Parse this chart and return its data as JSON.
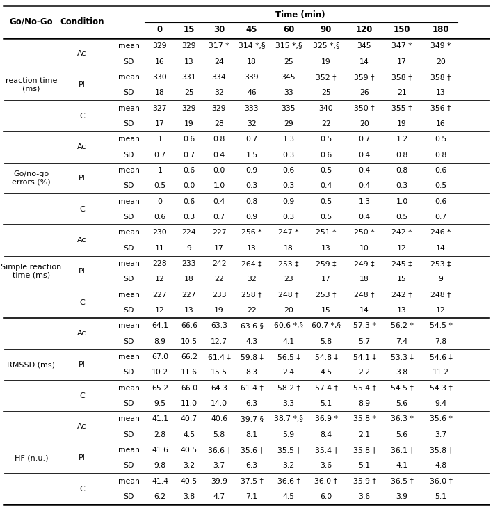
{
  "sections": [
    {
      "label": "reaction time\n(ms)",
      "conditions": [
        {
          "name": "Ac",
          "rows": [
            {
              "type": "mean",
              "values": [
                "329",
                "329",
                "317 *",
                "314 *,§",
                "315 *,§",
                "325 *,§",
                "345",
                "347 *",
                "349 *"
              ]
            },
            {
              "type": "SD",
              "values": [
                "16",
                "13",
                "24",
                "18",
                "25",
                "19",
                "14",
                "17",
                "20"
              ]
            }
          ]
        },
        {
          "name": "Pl",
          "rows": [
            {
              "type": "mean",
              "values": [
                "330",
                "331",
                "334",
                "339",
                "345",
                "352 ‡",
                "359 ‡",
                "358 ‡",
                "358 ‡"
              ]
            },
            {
              "type": "SD",
              "values": [
                "18",
                "25",
                "32",
                "46",
                "33",
                "25",
                "26",
                "21",
                "13"
              ]
            }
          ]
        },
        {
          "name": "C",
          "rows": [
            {
              "type": "mean",
              "values": [
                "327",
                "329",
                "329",
                "333",
                "335",
                "340",
                "350 †",
                "355 †",
                "356 †"
              ]
            },
            {
              "type": "SD",
              "values": [
                "17",
                "19",
                "28",
                "32",
                "29",
                "22",
                "20",
                "19",
                "16"
              ]
            }
          ]
        }
      ]
    },
    {
      "label": "Go/no-go\nerrors (%)",
      "conditions": [
        {
          "name": "Ac",
          "rows": [
            {
              "type": "mean",
              "values": [
                "1",
                "0.6",
                "0.8",
                "0.7",
                "1.3",
                "0.5",
                "0.7",
                "1.2",
                "0.5"
              ]
            },
            {
              "type": "SD",
              "values": [
                "0.7",
                "0.7",
                "0.4",
                "1.5",
                "0.3",
                "0.6",
                "0.4",
                "0.8",
                "0.8"
              ]
            }
          ]
        },
        {
          "name": "Pl",
          "rows": [
            {
              "type": "mean",
              "values": [
                "1",
                "0.6",
                "0.0",
                "0.9",
                "0.6",
                "0.5",
                "0.4",
                "0.8",
                "0.6"
              ]
            },
            {
              "type": "SD",
              "values": [
                "0.5",
                "0.0",
                "1.0",
                "0.3",
                "0.3",
                "0.4",
                "0.4",
                "0.3",
                "0.5"
              ]
            }
          ]
        },
        {
          "name": "C",
          "rows": [
            {
              "type": "mean",
              "values": [
                "0",
                "0.6",
                "0.4",
                "0.8",
                "0.9",
                "0.5",
                "1.3",
                "1.0",
                "0.6"
              ]
            },
            {
              "type": "SD",
              "values": [
                "0.6",
                "0.3",
                "0.7",
                "0.9",
                "0.3",
                "0.5",
                "0.4",
                "0.5",
                "0.7"
              ]
            }
          ]
        }
      ]
    },
    {
      "label": "Simple reaction\ntime (ms)",
      "conditions": [
        {
          "name": "Ac",
          "rows": [
            {
              "type": "mean",
              "values": [
                "230",
                "224",
                "227",
                "256 *",
                "247 *",
                "251 *",
                "250 *",
                "242 *",
                "246 *"
              ]
            },
            {
              "type": "SD",
              "values": [
                "11",
                "9",
                "17",
                "13",
                "18",
                "13",
                "10",
                "12",
                "14"
              ]
            }
          ]
        },
        {
          "name": "Pl",
          "rows": [
            {
              "type": "mean",
              "values": [
                "228",
                "233",
                "242",
                "264 ‡",
                "253 ‡",
                "259 ‡",
                "249 ‡",
                "245 ‡",
                "253 ‡"
              ]
            },
            {
              "type": "SD",
              "values": [
                "12",
                "18",
                "22",
                "32",
                "23",
                "17",
                "18",
                "15",
                "9"
              ]
            }
          ]
        },
        {
          "name": "C",
          "rows": [
            {
              "type": "mean",
              "values": [
                "227",
                "227",
                "233",
                "258 †",
                "248 †",
                "253 †",
                "248 †",
                "242 †",
                "248 †"
              ]
            },
            {
              "type": "SD",
              "values": [
                "12",
                "13",
                "19",
                "22",
                "20",
                "15",
                "14",
                "13",
                "12"
              ]
            }
          ]
        }
      ]
    },
    {
      "label": "RMSSD (ms)",
      "conditions": [
        {
          "name": "Ac",
          "rows": [
            {
              "type": "mean",
              "values": [
                "64.1",
                "66.6",
                "63.3",
                "63.6 §",
                "60.6 *,§",
                "60.7 *,§",
                "57.3 *",
                "56.2 *",
                "54.5 *"
              ]
            },
            {
              "type": "SD",
              "values": [
                "8.9",
                "10.5",
                "12.7",
                "4.3",
                "4.1",
                "5.8",
                "5.7",
                "7.4",
                "7.8"
              ]
            }
          ]
        },
        {
          "name": "Pl",
          "rows": [
            {
              "type": "mean",
              "values": [
                "67.0",
                "66.2",
                "61.4 ‡",
                "59.8 ‡",
                "56.5 ‡",
                "54.8 ‡",
                "54.1 ‡",
                "53.3 ‡",
                "54.6 ‡"
              ]
            },
            {
              "type": "SD",
              "values": [
                "10.2",
                "11.6",
                "15.5",
                "8.3",
                "2.4",
                "4.5",
                "2.2",
                "3.8",
                "11.2"
              ]
            }
          ]
        },
        {
          "name": "C",
          "rows": [
            {
              "type": "mean",
              "values": [
                "65.2",
                "66.0",
                "64.3",
                "61.4 †",
                "58.2 †",
                "57.4 †",
                "55.4 †",
                "54.5 †",
                "54.3 †"
              ]
            },
            {
              "type": "SD",
              "values": [
                "9.5",
                "11.0",
                "14.0",
                "6.3",
                "3.3",
                "5.1",
                "8.9",
                "5.6",
                "9.4"
              ]
            }
          ]
        }
      ]
    },
    {
      "label": "HF (n.u.)",
      "conditions": [
        {
          "name": "Ac",
          "rows": [
            {
              "type": "mean",
              "values": [
                "41.1",
                "40.7",
                "40.6",
                "39.7 §",
                "38.7 *,§",
                "36.9 *",
                "35.8 *",
                "36.3 *",
                "35.6 *"
              ]
            },
            {
              "type": "SD",
              "values": [
                "2.8",
                "4.5",
                "5.8",
                "8.1",
                "5.9",
                "8.4",
                "2.1",
                "5.6",
                "3.7"
              ]
            }
          ]
        },
        {
          "name": "Pl",
          "rows": [
            {
              "type": "mean",
              "values": [
                "41.6",
                "40.5",
                "36.6 ‡",
                "35.6 ‡",
                "35.5 ‡",
                "35.4 ‡",
                "35.8 ‡",
                "36.1 ‡",
                "35.8 ‡"
              ]
            },
            {
              "type": "SD",
              "values": [
                "9.8",
                "3.2",
                "3.7",
                "6.3",
                "3.2",
                "3.6",
                "5.1",
                "4.1",
                "4.8"
              ]
            }
          ]
        },
        {
          "name": "C",
          "rows": [
            {
              "type": "mean",
              "values": [
                "41.4",
                "40.5",
                "39.9",
                "37.5 †",
                "36.6 †",
                "36.0 †",
                "35.9 †",
                "36.5 †",
                "36.0 †"
              ]
            },
            {
              "type": "SD",
              "values": [
                "6.2",
                "3.8",
                "4.7",
                "7.1",
                "4.5",
                "6.0",
                "3.6",
                "3.9",
                "5.1"
              ]
            }
          ]
        }
      ]
    }
  ],
  "time_labels": [
    "0",
    "15",
    "30",
    "45",
    "60",
    "90",
    "120",
    "150",
    "180"
  ],
  "fig_width": 7.09,
  "fig_height": 7.33,
  "dpi": 100
}
